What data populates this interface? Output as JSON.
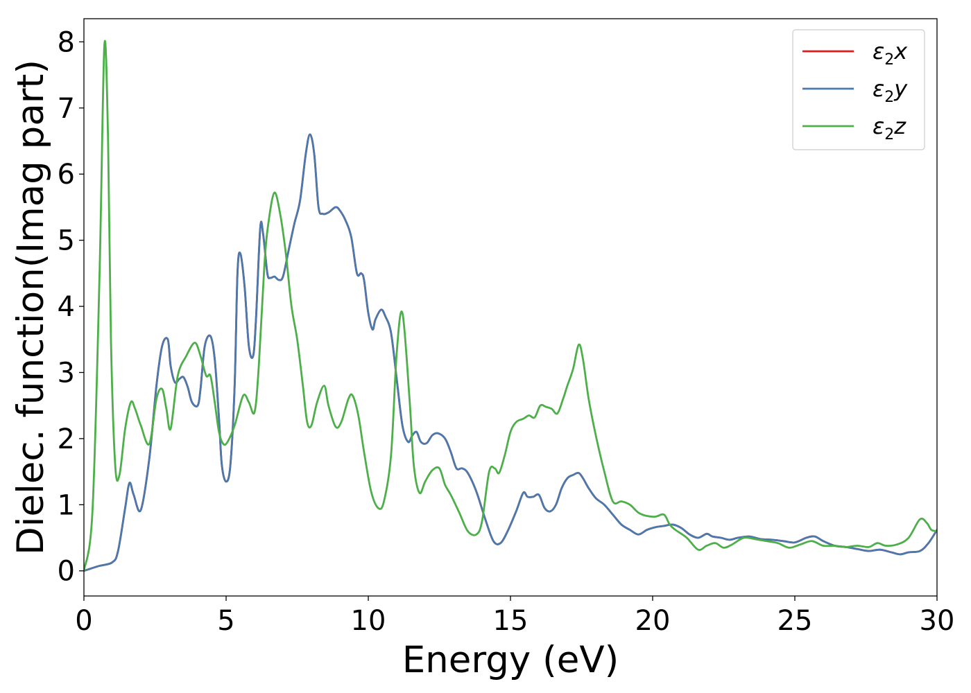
{
  "chart_data": {
    "type": "line",
    "xlabel": "Energy (eV)",
    "ylabel": "Dielec. function(Imag part)",
    "xlim": [
      0,
      30
    ],
    "ylim": [
      -0.38,
      8.35
    ],
    "xticks": [
      0,
      5,
      10,
      15,
      20,
      25,
      30
    ],
    "yticks": [
      0,
      1,
      2,
      3,
      4,
      5,
      6,
      7,
      8
    ],
    "xtick_labels": [
      "0",
      "5",
      "10",
      "15",
      "20",
      "25",
      "30"
    ],
    "ytick_labels": [
      "0",
      "1",
      "2",
      "3",
      "4",
      "5",
      "6",
      "7",
      "8"
    ],
    "grid": false,
    "legend_position": "top-right",
    "series": [
      {
        "name": "ε₂x",
        "legend_main": "ε",
        "legend_sub": "2",
        "legend_suffix": "x",
        "color": "#e41a1c",
        "x": [
          0,
          0.5,
          1.0,
          1.2,
          1.45,
          1.6,
          1.75,
          2.0,
          2.3,
          2.55,
          2.75,
          2.95,
          3.05,
          3.2,
          3.35,
          3.5,
          3.65,
          3.8,
          4.0,
          4.1,
          4.25,
          4.45,
          4.6,
          4.75,
          4.85,
          5.0,
          5.15,
          5.3,
          5.4,
          5.5,
          5.65,
          5.8,
          5.95,
          6.05,
          6.2,
          6.3,
          6.45,
          6.55,
          6.7,
          6.85,
          7.0,
          7.2,
          7.4,
          7.6,
          7.8,
          7.95,
          8.1,
          8.25,
          8.4,
          8.6,
          8.85,
          9.0,
          9.2,
          9.4,
          9.6,
          9.75,
          9.85,
          10.0,
          10.15,
          10.25,
          10.45,
          10.6,
          10.8,
          11.0,
          11.2,
          11.4,
          11.55,
          11.7,
          11.85,
          12.05,
          12.25,
          12.45,
          12.7,
          12.9,
          13.1,
          13.3,
          13.5,
          13.8,
          14.1,
          14.4,
          14.65,
          14.9,
          15.2,
          15.45,
          15.6,
          15.8,
          16.0,
          16.2,
          16.4,
          16.6,
          16.8,
          17.0,
          17.2,
          17.4,
          17.55,
          17.75,
          18.0,
          18.3,
          18.6,
          18.9,
          19.2,
          19.5,
          19.8,
          20.1,
          20.4,
          20.7,
          21.0,
          21.3,
          21.6,
          21.9,
          22.1,
          22.4,
          22.7,
          23.0,
          23.4,
          23.8,
          24.2,
          24.6,
          25.0,
          25.4,
          25.7,
          26.0,
          26.4,
          26.8,
          27.2,
          27.6,
          28.0,
          28.4,
          28.7,
          29.0,
          29.4,
          29.7,
          30.0
        ],
        "y": [
          0.0,
          0.07,
          0.13,
          0.3,
          0.95,
          1.33,
          1.15,
          0.92,
          1.7,
          2.8,
          3.4,
          3.5,
          3.1,
          2.85,
          2.9,
          2.93,
          2.78,
          2.55,
          2.5,
          2.75,
          3.4,
          3.55,
          3.2,
          2.3,
          1.6,
          1.35,
          1.6,
          2.8,
          4.5,
          4.8,
          4.3,
          3.4,
          3.25,
          3.8,
          5.18,
          5.1,
          4.5,
          4.43,
          4.45,
          4.4,
          4.45,
          4.85,
          5.25,
          5.6,
          6.3,
          6.6,
          6.3,
          5.5,
          5.4,
          5.42,
          5.5,
          5.45,
          5.3,
          5.05,
          4.5,
          4.5,
          4.4,
          3.9,
          3.65,
          3.8,
          3.95,
          3.85,
          3.6,
          2.9,
          2.2,
          1.95,
          2.05,
          2.1,
          1.95,
          1.93,
          2.05,
          2.08,
          2.0,
          1.8,
          1.55,
          1.55,
          1.48,
          1.2,
          0.8,
          0.45,
          0.42,
          0.6,
          0.9,
          1.18,
          1.12,
          1.12,
          1.15,
          0.95,
          0.9,
          1.0,
          1.25,
          1.4,
          1.45,
          1.48,
          1.4,
          1.25,
          1.1,
          1.0,
          0.85,
          0.7,
          0.62,
          0.55,
          0.62,
          0.66,
          0.68,
          0.7,
          0.65,
          0.55,
          0.5,
          0.56,
          0.52,
          0.5,
          0.47,
          0.5,
          0.52,
          0.48,
          0.47,
          0.45,
          0.43,
          0.5,
          0.52,
          0.45,
          0.38,
          0.36,
          0.33,
          0.3,
          0.32,
          0.28,
          0.25,
          0.28,
          0.3,
          0.42,
          0.62
        ]
      },
      {
        "name": "ε₂y",
        "legend_main": "ε",
        "legend_sub": "2",
        "legend_suffix": "y",
        "color": "#4a79ae",
        "x": [
          0,
          0.5,
          1.0,
          1.2,
          1.45,
          1.6,
          1.75,
          2.0,
          2.3,
          2.55,
          2.75,
          2.95,
          3.05,
          3.2,
          3.35,
          3.5,
          3.65,
          3.8,
          4.0,
          4.1,
          4.25,
          4.45,
          4.6,
          4.75,
          4.85,
          5.0,
          5.15,
          5.3,
          5.4,
          5.5,
          5.65,
          5.8,
          5.95,
          6.05,
          6.2,
          6.3,
          6.45,
          6.55,
          6.7,
          6.85,
          7.0,
          7.2,
          7.4,
          7.6,
          7.8,
          7.95,
          8.1,
          8.25,
          8.4,
          8.6,
          8.85,
          9.0,
          9.2,
          9.4,
          9.6,
          9.75,
          9.85,
          10.0,
          10.15,
          10.25,
          10.45,
          10.6,
          10.8,
          11.0,
          11.2,
          11.4,
          11.55,
          11.7,
          11.85,
          12.05,
          12.25,
          12.45,
          12.7,
          12.9,
          13.1,
          13.3,
          13.5,
          13.8,
          14.1,
          14.4,
          14.65,
          14.9,
          15.2,
          15.45,
          15.6,
          15.8,
          16.0,
          16.2,
          16.4,
          16.6,
          16.8,
          17.0,
          17.2,
          17.4,
          17.55,
          17.75,
          18.0,
          18.3,
          18.6,
          18.9,
          19.2,
          19.5,
          19.8,
          20.1,
          20.4,
          20.7,
          21.0,
          21.3,
          21.6,
          21.9,
          22.1,
          22.4,
          22.7,
          23.0,
          23.4,
          23.8,
          24.2,
          24.6,
          25.0,
          25.4,
          25.7,
          26.0,
          26.4,
          26.8,
          27.2,
          27.6,
          28.0,
          28.4,
          28.7,
          29.0,
          29.4,
          29.7,
          30.0
        ],
        "y": [
          0.0,
          0.07,
          0.13,
          0.3,
          0.95,
          1.33,
          1.15,
          0.92,
          1.7,
          2.8,
          3.4,
          3.5,
          3.1,
          2.85,
          2.9,
          2.93,
          2.78,
          2.55,
          2.5,
          2.75,
          3.4,
          3.55,
          3.2,
          2.3,
          1.6,
          1.35,
          1.6,
          2.8,
          4.5,
          4.8,
          4.3,
          3.4,
          3.25,
          3.8,
          5.18,
          5.1,
          4.5,
          4.43,
          4.45,
          4.4,
          4.45,
          4.85,
          5.25,
          5.6,
          6.3,
          6.6,
          6.3,
          5.5,
          5.4,
          5.42,
          5.5,
          5.45,
          5.3,
          5.05,
          4.5,
          4.5,
          4.4,
          3.9,
          3.65,
          3.8,
          3.95,
          3.85,
          3.6,
          2.9,
          2.2,
          1.95,
          2.05,
          2.1,
          1.95,
          1.93,
          2.05,
          2.08,
          2.0,
          1.8,
          1.55,
          1.55,
          1.48,
          1.2,
          0.8,
          0.45,
          0.42,
          0.6,
          0.9,
          1.18,
          1.12,
          1.12,
          1.15,
          0.95,
          0.9,
          1.0,
          1.25,
          1.4,
          1.45,
          1.48,
          1.4,
          1.25,
          1.1,
          1.0,
          0.85,
          0.7,
          0.62,
          0.55,
          0.62,
          0.66,
          0.68,
          0.7,
          0.65,
          0.55,
          0.5,
          0.56,
          0.52,
          0.5,
          0.47,
          0.5,
          0.52,
          0.48,
          0.47,
          0.45,
          0.43,
          0.5,
          0.52,
          0.45,
          0.38,
          0.36,
          0.33,
          0.3,
          0.32,
          0.28,
          0.25,
          0.28,
          0.3,
          0.42,
          0.62
        ]
      },
      {
        "name": "ε₂z",
        "legend_main": "ε",
        "legend_sub": "2",
        "legend_suffix": "z",
        "color": "#4daf4a",
        "x": [
          0,
          0.3,
          0.55,
          0.72,
          0.85,
          0.95,
          1.1,
          1.25,
          1.45,
          1.65,
          1.8,
          2.0,
          2.3,
          2.55,
          2.75,
          2.9,
          3.05,
          3.3,
          3.6,
          3.9,
          4.1,
          4.3,
          4.45,
          4.6,
          4.75,
          4.9,
          5.05,
          5.3,
          5.6,
          5.8,
          6.0,
          6.15,
          6.35,
          6.5,
          6.7,
          6.9,
          7.1,
          7.3,
          7.5,
          7.7,
          7.85,
          8.0,
          8.2,
          8.45,
          8.6,
          8.85,
          9.05,
          9.3,
          9.45,
          9.65,
          9.85,
          10.1,
          10.35,
          10.55,
          10.8,
          11.0,
          11.2,
          11.45,
          11.6,
          11.8,
          12.0,
          12.25,
          12.5,
          12.7,
          12.9,
          13.2,
          13.5,
          13.8,
          14.0,
          14.25,
          14.45,
          14.6,
          14.8,
          15.0,
          15.2,
          15.45,
          15.65,
          15.85,
          16.05,
          16.25,
          16.45,
          16.65,
          16.85,
          17.0,
          17.2,
          17.4,
          17.55,
          17.75,
          18.0,
          18.3,
          18.6,
          18.9,
          19.2,
          19.5,
          19.8,
          20.1,
          20.4,
          20.6,
          20.8,
          21.2,
          21.6,
          21.9,
          22.2,
          22.5,
          22.8,
          23.2,
          23.6,
          24.0,
          24.4,
          24.8,
          25.2,
          25.6,
          26.0,
          26.4,
          26.8,
          27.2,
          27.6,
          27.9,
          28.2,
          28.6,
          29.0,
          29.4,
          29.65,
          29.8,
          30.0
        ],
        "y": [
          0.0,
          0.9,
          4.5,
          7.95,
          6.5,
          3.5,
          1.6,
          1.45,
          2.15,
          2.55,
          2.45,
          2.2,
          1.92,
          2.6,
          2.75,
          2.45,
          2.15,
          2.95,
          3.25,
          3.45,
          3.25,
          2.95,
          2.95,
          2.55,
          2.1,
          1.92,
          1.95,
          2.2,
          2.65,
          2.55,
          2.4,
          3.1,
          4.65,
          5.3,
          5.72,
          5.4,
          4.8,
          4.0,
          3.5,
          2.8,
          2.25,
          2.2,
          2.55,
          2.8,
          2.5,
          2.18,
          2.25,
          2.6,
          2.65,
          2.35,
          1.8,
          1.2,
          0.95,
          1.05,
          1.75,
          3.3,
          3.9,
          2.6,
          1.6,
          1.18,
          1.35,
          1.52,
          1.55,
          1.3,
          1.15,
          0.88,
          0.6,
          0.55,
          0.75,
          1.5,
          1.55,
          1.48,
          1.75,
          2.1,
          2.25,
          2.3,
          2.35,
          2.32,
          2.5,
          2.48,
          2.45,
          2.38,
          2.6,
          2.8,
          3.05,
          3.42,
          3.2,
          2.6,
          2.05,
          1.5,
          1.05,
          1.05,
          1.0,
          0.88,
          0.83,
          0.82,
          0.85,
          0.7,
          0.62,
          0.5,
          0.32,
          0.38,
          0.42,
          0.35,
          0.4,
          0.5,
          0.48,
          0.45,
          0.42,
          0.35,
          0.4,
          0.45,
          0.38,
          0.38,
          0.36,
          0.38,
          0.36,
          0.42,
          0.38,
          0.4,
          0.5,
          0.78,
          0.72,
          0.62,
          0.6
        ]
      }
    ]
  }
}
